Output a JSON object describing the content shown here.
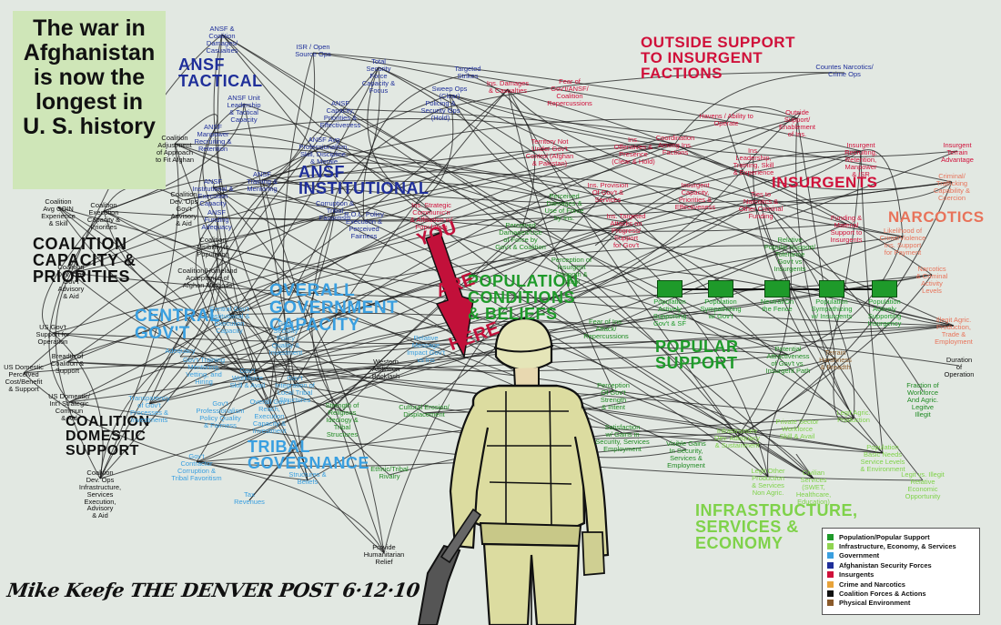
{
  "callout": {
    "lines": [
      "The war in",
      "Afghanistan",
      "is now the",
      "longest in",
      "U. S. history"
    ]
  },
  "labels": {
    "ansf_tactical": "ANSF\nTACTICAL",
    "ansf_institutional": "ANSF\nINSTITUTIONAL",
    "outside_support": "OUTSIDE SUPPORT\nTO INSURGENT\nFACTIONS",
    "insurgents": "INSURGENTS",
    "narcotics": "NARCOTICS",
    "coalition_capacity": "COALITION\nCAPACITY &\nPRIORITIES",
    "overall_gov": "OVERALL\nGOVERNMENT\nCAPACITY",
    "central_gov": "CENTRAL\nGOV'T",
    "coalition_domestic": "COALITION\nDOMESTIC\nSUPPORT",
    "tribal": "TRIBAL\nGOVERNANCE",
    "population": "POPULATION\nCONDITIONS\n& BELIEFS",
    "popular_support": "POPULAR\nSUPPORT",
    "infrastructure": "INFRASTRUCTURE,\nSERVICES &\nECONOMY",
    "you_are_here": [
      "YOU",
      "ARE",
      "HERE"
    ]
  },
  "nodes": [
    {
      "text": "ANSF &\nCoalition\nDamages/\nCasualties",
      "color": "#1f2f9a"
    },
    {
      "text": "ISR / Open\nSource Ops",
      "color": "#1f2f9a"
    },
    {
      "text": "Total\nSecurity\nForce\nCapacity &\nFocus",
      "color": "#1f2f9a"
    },
    {
      "text": "Targeted\nStrikes",
      "color": "#1f2f9a"
    },
    {
      "text": "Sweep Ops\n(Clear)",
      "color": "#1f2f9a"
    },
    {
      "text": "Policing &\nSecurity Ops\n(Hold)",
      "color": "#1f2f9a"
    },
    {
      "text": "ANSF Unit\nLeadership\n& Tactical\nCapacity",
      "color": "#1f2f9a"
    },
    {
      "text": "ANSF\nCapacity,\nPriorities &\nEffectiveness",
      "color": "#1f2f9a"
    },
    {
      "text": "ANSF\nManpower\nRecruiting &\nRetention",
      "color": "#1f2f9a"
    },
    {
      "text": "ANSF Avg\nProfessionalism,\nSkill, Discipline,\n& Morale",
      "color": "#1f2f9a"
    },
    {
      "text": "ANSF\nInstitutional &\nExecution\nCapacity",
      "color": "#1f2f9a"
    },
    {
      "text": "ANSF\nTraining &\nMentoring",
      "color": "#1f2f9a"
    },
    {
      "text": "ANSF\nFunding\nAdequacy",
      "color": "#1f2f9a"
    },
    {
      "text": "Corruption &\nTribal\nFavoritism",
      "color": "#1f2f9a"
    },
    {
      "text": "R.O.L. Policy\nExecution &\nPerceived\nFairness",
      "color": "#1f2f9a"
    },
    {
      "text": "Ins. Damages\n& Casualties",
      "color": "#d0103a"
    },
    {
      "text": "Fear of\nGov't/ANSF/\nCoalition\nRepercussions",
      "color": "#d0103a"
    },
    {
      "text": "Territory Not\nUnder Gov't\nControl (Afghan\n& Pakistan)",
      "color": "#d0103a"
    },
    {
      "text": "Ins.\nOffensives &\nPresence\n(Clear & Hold)",
      "color": "#d0103a"
    },
    {
      "text": "Havens / Ability to\nOperate",
      "color": "#d0103a"
    },
    {
      "text": "Outside\nSupport/\nEnablement\nof Ins.",
      "color": "#d0103a"
    },
    {
      "text": "Coordination\nAmong Ins.\nFactions",
      "color": "#d0103a"
    },
    {
      "text": "Ins.\nLeadership,\nTraining, Skill\n& Experience",
      "color": "#d0103a"
    },
    {
      "text": "Insurgent\nRecruiting,\nRetention,\nManpower\n& ISR",
      "color": "#d0103a"
    },
    {
      "text": "Insurgent\nCapacity,\nPriorities &\nEffectiveness",
      "color": "#d0103a"
    },
    {
      "text": "Ties to\nNarcotics &\nOther Criminal\nFunding",
      "color": "#d0103a"
    },
    {
      "text": "Funding &\nMaterial\nSupport to\nInsurgents",
      "color": "#d0103a"
    },
    {
      "text": "Ins. Provision\nOf Gov't &\nServices",
      "color": "#d0103a"
    },
    {
      "text": "Ins. Strategic\nCommunic'n\n& Affiliation w/\nPopulation",
      "color": "#d0103a"
    },
    {
      "text": "Ins. Targeted\nAttacks on\nProgress/\nSupport\nfor Gov't",
      "color": "#d0103a"
    },
    {
      "text": "Countes Narcotics/\nCrime Ops",
      "color": "#1f2f9a"
    },
    {
      "text": "Insurgent\nTerrain\nAdvantage",
      "color": "#d0103a"
    },
    {
      "text": "Criminal/\nTrafficking\nCapability &\nCoercion",
      "color": "#e8735a"
    },
    {
      "text": "Likelihood of\nCrime/Violence\nIns. Support\nfor Payment",
      "color": "#e8735a"
    },
    {
      "text": "Narcotics\n& Criminal\nActivity\nLevels",
      "color": "#e8735a"
    },
    {
      "text": "Illegit Agric.\nProduction,\nTrade &\nEmployment",
      "color": "#e8735a"
    },
    {
      "text": "Coalition\nAvg COIN\nExperience\n& Skill",
      "color": "#111111"
    },
    {
      "text": "Coalition\nExecution\nCapacity &\nPriorities",
      "color": "#111111"
    },
    {
      "text": "Coalition\nAdjustment\nof Approach\nto Fit Afghan",
      "color": "#111111"
    },
    {
      "text": "Coalition\nDev. Ops\nGov't\nAdvisory\n& Aid",
      "color": "#111111"
    },
    {
      "text": "Coalition\nVisibility to\nPopulation",
      "color": "#111111"
    },
    {
      "text": "Coalition\nDev. Ops\nGov't\nAdvisory\n& Aid",
      "color": "#111111"
    },
    {
      "text": "Coalition/Homeland\nAcceptance of\nAfghan Methods",
      "color": "#111111"
    },
    {
      "text": "US Gov't\nSupport for\nOperation",
      "color": "#111111"
    },
    {
      "text": "Breadth of\nCoalition &\nSupport",
      "color": "#111111"
    },
    {
      "text": "US Domestic\nPerceived\nCost/Benefit\n& Support",
      "color": "#111111"
    },
    {
      "text": "US Domestic/\nInt'l Strategic\nCommun\n& Aid",
      "color": "#111111"
    },
    {
      "text": "Coalition\nDev. Ops\nInfrastructure,\nServices\nExecution,\nAdvisory\n& Aid",
      "color": "#111111"
    },
    {
      "text": "Central Gov't\nInstitutional &\nExecution\nCapacity",
      "color": "#3a9fe0"
    },
    {
      "text": "Gov't\nSecurity\nPolicy\nQuality &\nInvestment",
      "color": "#3a9fe0"
    },
    {
      "text": "Adequacy",
      "color": "#3a9fe0"
    },
    {
      "text": "Gov't Training\nMentoring,\nVetting, and\nHiring",
      "color": "#3a9fe0"
    },
    {
      "text": "Gov't\nWorkforce\nSkill & Avail",
      "color": "#3a9fe0"
    },
    {
      "text": "Transparency\nof Gov't\nProcesses &\nInvestments",
      "color": "#3a9fe0"
    },
    {
      "text": "Gov't\nProfessionalism\nPolicy Quality\n& Fairness",
      "color": "#3a9fe0"
    },
    {
      "text": "Gov't\nIntegration of\nLocal Tribal\nStructures",
      "color": "#3a9fe0"
    },
    {
      "text": "Overall Gov't\nReach,\nExecution\nCapacity &\nInvestment",
      "color": "#3a9fe0"
    },
    {
      "text": "Gov't\nContractor\nCorruption &\nTribal Favoritism",
      "color": "#3a9fe0"
    },
    {
      "text": "Tax\nRevenues",
      "color": "#3a9fe0"
    },
    {
      "text": "Structures &\nBeliefs",
      "color": "#3a9fe0"
    },
    {
      "text": "Western\nAffiliation\nBacklash",
      "color": "#111111"
    },
    {
      "text": "Provide\nHumanitarian\nRelief",
      "color": "#111111"
    },
    {
      "text": "Strength of\nReligious\nIdeology &\nTribal\nStructures",
      "color": "#1f8a22"
    },
    {
      "text": "Cultural Erosion/\nDisplacement",
      "color": "#1f8a22"
    },
    {
      "text": "Ethnic/Tribal\nRivalry",
      "color": "#1f8a22"
    },
    {
      "text": "Relative\nMessage\nImpact Gov't\nvs Ins",
      "color": "#3a9fe0"
    },
    {
      "text": "Perceived\nDamages/Use\nof Force by\nGov't & Coalition",
      "color": "#1f8a22"
    },
    {
      "text": "Perceived\nDamages &\nUse of Force\nby Ins.",
      "color": "#1f8a22"
    },
    {
      "text": "Perception of\nInsurgent\nStrength &\nIntent",
      "color": "#1f8a22"
    },
    {
      "text": "Fear of Ins.\nAttack/\nRepercussions",
      "color": "#1f8a22"
    },
    {
      "text": "Perception\nOf Gov't\nStrength\n& Intent",
      "color": "#1f8a22"
    },
    {
      "text": "Satisfaction\nw/ Gains in\nSecurity, Services\nEmployment",
      "color": "#1f8a22"
    },
    {
      "text": "Visible Gains\nIn Security,\nServices &\nEmployment",
      "color": "#1f8a22"
    },
    {
      "text": "Relative\nPopular Support/\nTolerance\nGov't vs\nInsurgents",
      "color": "#1f8a22"
    },
    {
      "text": "Potential\nAttractiveness\nof Gov't vs.\nInsurgent Path",
      "color": "#1f8a22"
    },
    {
      "text": "Terrain\nHarshness\n& Breadth",
      "color": "#8a5a2a"
    },
    {
      "text": "Duration\nof\nOperation",
      "color": "#111111"
    },
    {
      "text": "Fraction of\nWorkforce\nAnd Agric.\nLegitve\nIllegit",
      "color": "#1f8a22"
    },
    {
      "text": "Infrastructure\nDev. Adequacy\n& Sustainment",
      "color": "#7fd24a"
    },
    {
      "text": "Private Sector\nWorkforce\nSkill & Avail",
      "color": "#7fd24a"
    },
    {
      "text": "Legit Agric.\nProduction",
      "color": "#7fd24a"
    },
    {
      "text": "Population\nBasic Needs\nService Levels\n& Environment",
      "color": "#7fd24a"
    },
    {
      "text": "Legit Other\nProduction\n& Services\nNon Agric.",
      "color": "#7fd24a"
    },
    {
      "text": "Civilian\nServices\n(SWET,\nHealthcare,\nEducation)",
      "color": "#7fd24a"
    },
    {
      "text": "Legit vs. Illegit\nRelative\nEconomic\nOpportunity",
      "color": "#7fd24a"
    }
  ],
  "chain": [
    "Population\nActively\nSupporting\nGov't & SF",
    "Population\nSympathizing\nw/ Gov't",
    "Neutral/On\nthe Fence",
    "Population\nSympathizing\nw/ Insurgents",
    "Population\nActively\nSupporting\nInsurgency"
  ],
  "legend": [
    {
      "label": "Population/Popular Support",
      "color": "#1e9a2a"
    },
    {
      "label": "Infrastructure, Economy, & Services",
      "color": "#8fd450"
    },
    {
      "label": "Government",
      "color": "#3a9fe0"
    },
    {
      "label": "Afghanistan Security Forces",
      "color": "#1f2f9a"
    },
    {
      "label": "Insurgents",
      "color": "#d0103a"
    },
    {
      "label": "Crime and Narcotics",
      "color": "#e8a33a"
    },
    {
      "label": "Coalition Forces & Actions",
      "color": "#111111"
    },
    {
      "label": "Physical Environment",
      "color": "#8a5a2a"
    }
  ],
  "signature": "Mike Keefe THE DENVER POST 6·12·10",
  "colors": {
    "ansf": "#1f2f9a",
    "insurgent": "#d0103a",
    "narcotics": "#e8735a",
    "government": "#3a9fe0",
    "population": "#1e9a2a",
    "infrastructure": "#7fd24a",
    "coalition": "#111111",
    "sign": "#b0122f"
  }
}
